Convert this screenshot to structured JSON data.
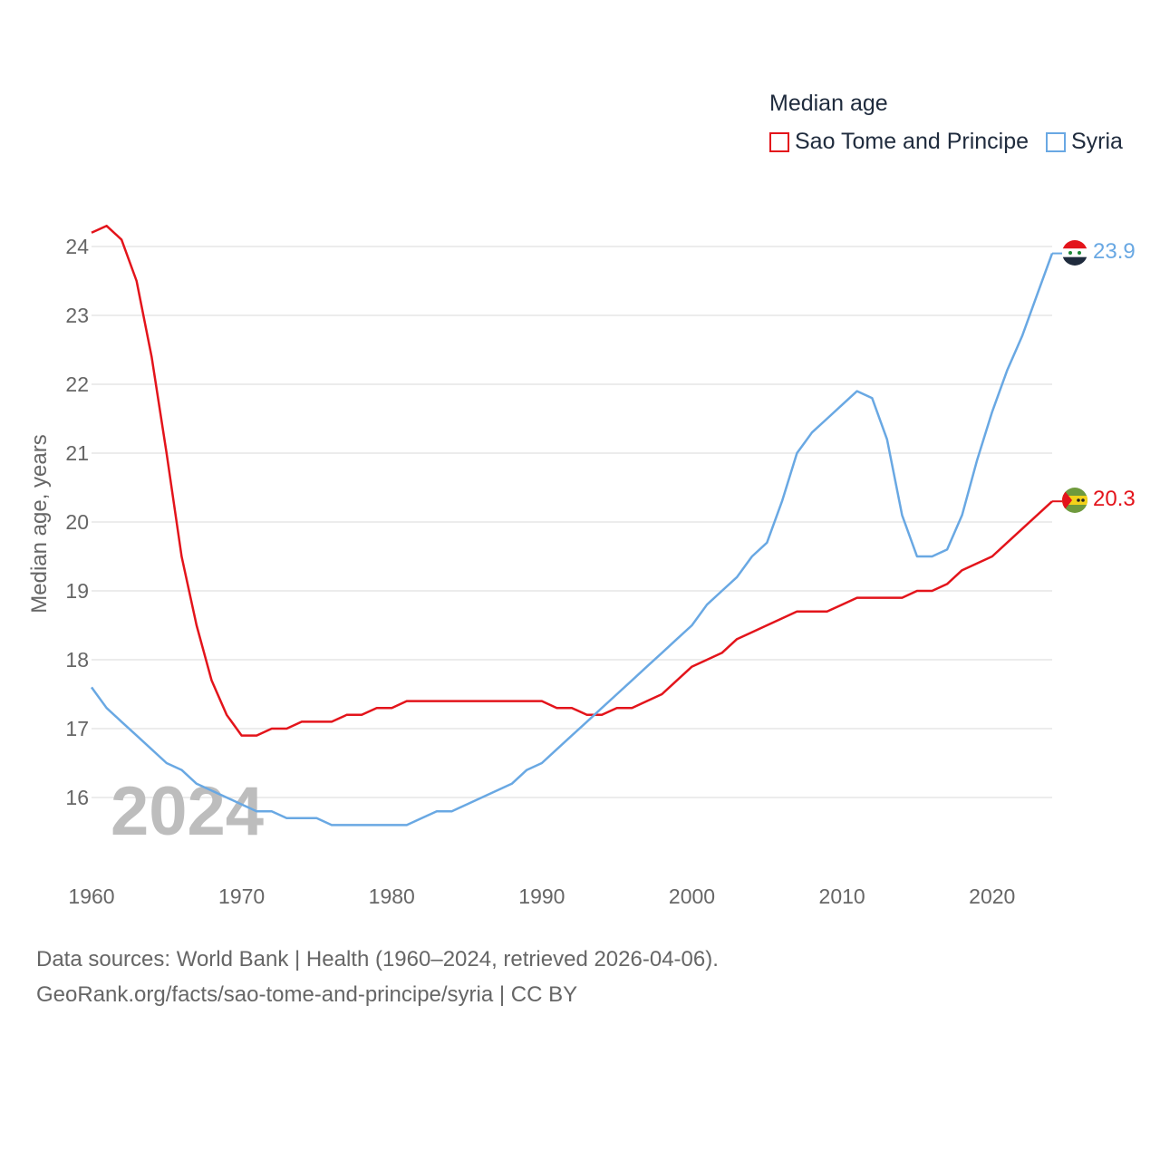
{
  "legend": {
    "title": "Median age",
    "items": [
      {
        "label": "Sao Tome and Principe",
        "color": "#e3141b"
      },
      {
        "label": "Syria",
        "color": "#69a8e3"
      }
    ]
  },
  "footer": {
    "line1": "Data sources: World Bank | Health (1960–2024, retrieved 2026-04-06).",
    "line2": "GeoRank.org/facts/sao-tome-and-principe/syria | CC BY"
  },
  "watermark_year": "2024",
  "chart_data": {
    "type": "line",
    "title": "Median age",
    "xlabel": "",
    "ylabel": "Median age, years",
    "xlim": [
      1960,
      2024
    ],
    "ylim": [
      15.0,
      24.7
    ],
    "x_ticks": [
      1960,
      1970,
      1980,
      1990,
      2000,
      2010,
      2020
    ],
    "y_ticks": [
      16,
      17,
      18,
      19,
      20,
      21,
      22,
      23,
      24
    ],
    "grid": true,
    "x": [
      1960,
      1961,
      1962,
      1963,
      1964,
      1965,
      1966,
      1967,
      1968,
      1969,
      1970,
      1971,
      1972,
      1973,
      1974,
      1975,
      1976,
      1977,
      1978,
      1979,
      1980,
      1981,
      1982,
      1983,
      1984,
      1985,
      1986,
      1987,
      1988,
      1989,
      1990,
      1991,
      1992,
      1993,
      1994,
      1995,
      1996,
      1997,
      1998,
      1999,
      2000,
      2001,
      2002,
      2003,
      2004,
      2005,
      2006,
      2007,
      2008,
      2009,
      2010,
      2011,
      2012,
      2013,
      2014,
      2015,
      2016,
      2017,
      2018,
      2019,
      2020,
      2021,
      2022,
      2023,
      2024
    ],
    "series": [
      {
        "name": "Sao Tome and Principe",
        "color": "#e3141b",
        "end_label": "20.3",
        "values": [
          24.2,
          24.3,
          24.1,
          23.5,
          22.4,
          21.0,
          19.5,
          18.5,
          17.7,
          17.2,
          16.9,
          16.9,
          17.0,
          17.0,
          17.1,
          17.1,
          17.1,
          17.2,
          17.2,
          17.3,
          17.3,
          17.4,
          17.4,
          17.4,
          17.4,
          17.4,
          17.4,
          17.4,
          17.4,
          17.4,
          17.4,
          17.3,
          17.3,
          17.2,
          17.2,
          17.3,
          17.3,
          17.4,
          17.5,
          17.7,
          17.9,
          18.0,
          18.1,
          18.3,
          18.4,
          18.5,
          18.6,
          18.7,
          18.7,
          18.7,
          18.8,
          18.9,
          18.9,
          18.9,
          18.9,
          19.0,
          19.0,
          19.1,
          19.3,
          19.4,
          19.5,
          19.7,
          19.9,
          20.1,
          20.3
        ]
      },
      {
        "name": "Syria",
        "color": "#69a8e3",
        "end_label": "23.9",
        "values": [
          17.6,
          17.3,
          17.1,
          16.9,
          16.7,
          16.5,
          16.4,
          16.2,
          16.1,
          16.0,
          15.9,
          15.8,
          15.8,
          15.7,
          15.7,
          15.7,
          15.6,
          15.6,
          15.6,
          15.6,
          15.6,
          15.6,
          15.7,
          15.8,
          15.8,
          15.9,
          16.0,
          16.1,
          16.2,
          16.4,
          16.5,
          16.7,
          16.9,
          17.1,
          17.3,
          17.5,
          17.7,
          17.9,
          18.1,
          18.3,
          18.5,
          18.8,
          19.0,
          19.2,
          19.5,
          19.7,
          20.3,
          21.0,
          21.3,
          21.5,
          21.7,
          21.9,
          21.8,
          21.2,
          20.1,
          19.5,
          19.5,
          19.6,
          20.1,
          20.9,
          21.6,
          22.2,
          22.7,
          23.3,
          23.9
        ]
      }
    ]
  }
}
